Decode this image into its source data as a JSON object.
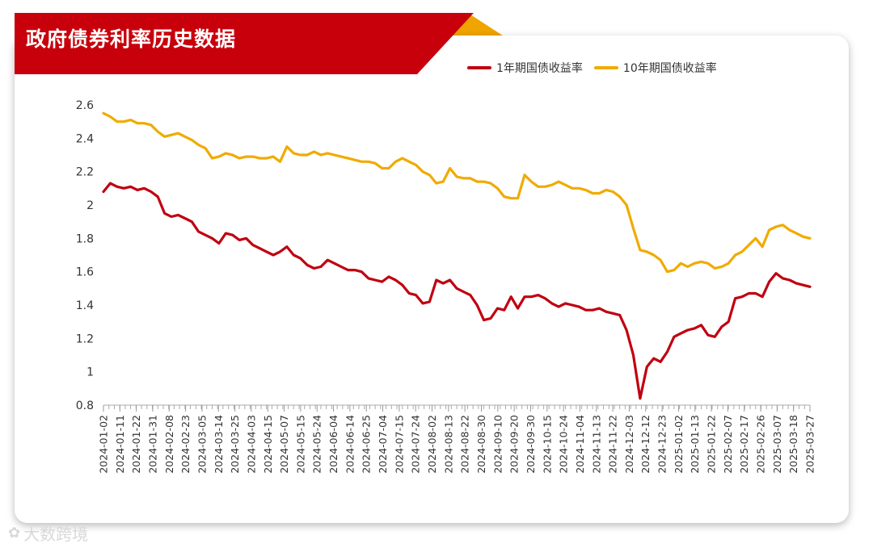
{
  "title": "政府债券利率历史数据",
  "watermark": "大数跨境",
  "watermark_icon": "logo-icon",
  "chart_data": {
    "type": "line",
    "title": "政府债券利率历史数据",
    "xlabel": "",
    "ylabel": "",
    "ylim": [
      0.8,
      2.6
    ],
    "yticks": [
      0.8,
      1,
      1.2,
      1.4,
      1.6,
      1.8,
      2,
      2.2,
      2.4,
      2.6
    ],
    "ytick_labels": [
      "0.8",
      "1",
      "1.2",
      "1.4",
      "1.6",
      "1.8",
      "2",
      "2.2",
      "2.4",
      "2.6"
    ],
    "x_tick_labels": [
      "2024-01-02",
      "2024-01-11",
      "2024-01-22",
      "2024-01-31",
      "2024-02-08",
      "2024-02-23",
      "2024-03-05",
      "2024-03-14",
      "2024-03-25",
      "2024-04-03",
      "2024-04-15",
      "2024-05-07",
      "2024-05-15",
      "2024-05-24",
      "2024-06-04",
      "2024-06-14",
      "2024-06-25",
      "2024-07-04",
      "2024-07-15",
      "2024-07-24",
      "2024-08-02",
      "2024-08-13",
      "2024-08-22",
      "2024-08-30",
      "2024-09-10",
      "2024-09-20",
      "2024-09-30",
      "2024-10-15",
      "2024-10-24",
      "2024-11-04",
      "2024-11-13",
      "2024-11-22",
      "2024-12-03",
      "2024-12-12",
      "2024-12-23",
      "2025-01-02",
      "2025-01-13",
      "2025-01-22",
      "2025-02-07",
      "2025-02-17",
      "2025-02-26",
      "2025-03-07",
      "2025-03-18",
      "2025-03-27"
    ],
    "grid": false,
    "legend_position": "top-right",
    "series": [
      {
        "name": "1年期国债收益率",
        "color": "#c00010",
        "values": [
          2.08,
          2.13,
          2.11,
          2.1,
          2.11,
          2.09,
          2.1,
          2.08,
          2.05,
          1.95,
          1.93,
          1.94,
          1.92,
          1.9,
          1.84,
          1.82,
          1.8,
          1.77,
          1.83,
          1.82,
          1.79,
          1.8,
          1.76,
          1.74,
          1.72,
          1.7,
          1.72,
          1.75,
          1.7,
          1.68,
          1.64,
          1.62,
          1.63,
          1.67,
          1.65,
          1.63,
          1.61,
          1.61,
          1.6,
          1.56,
          1.55,
          1.54,
          1.57,
          1.55,
          1.52,
          1.47,
          1.46,
          1.41,
          1.42,
          1.55,
          1.53,
          1.55,
          1.5,
          1.48,
          1.46,
          1.4,
          1.31,
          1.32,
          1.38,
          1.37,
          1.45,
          1.38,
          1.45,
          1.45,
          1.46,
          1.44,
          1.41,
          1.39,
          1.41,
          1.4,
          1.39,
          1.37,
          1.37,
          1.38,
          1.36,
          1.35,
          1.34,
          1.25,
          1.1,
          0.84,
          1.03,
          1.08,
          1.06,
          1.12,
          1.21,
          1.23,
          1.25,
          1.26,
          1.28,
          1.22,
          1.21,
          1.27,
          1.3,
          1.44,
          1.45,
          1.47,
          1.47,
          1.45,
          1.54,
          1.59,
          1.56,
          1.55,
          1.53,
          1.52,
          1.51
        ]
      },
      {
        "name": "10年期国债收益率",
        "color": "#f0ab00",
        "values": [
          2.55,
          2.53,
          2.5,
          2.5,
          2.51,
          2.49,
          2.49,
          2.48,
          2.44,
          2.41,
          2.42,
          2.43,
          2.41,
          2.39,
          2.36,
          2.34,
          2.28,
          2.29,
          2.31,
          2.3,
          2.28,
          2.29,
          2.29,
          2.28,
          2.28,
          2.29,
          2.26,
          2.35,
          2.31,
          2.3,
          2.3,
          2.32,
          2.3,
          2.31,
          2.3,
          2.29,
          2.28,
          2.27,
          2.26,
          2.26,
          2.25,
          2.22,
          2.22,
          2.26,
          2.28,
          2.26,
          2.24,
          2.2,
          2.18,
          2.13,
          2.14,
          2.22,
          2.17,
          2.16,
          2.16,
          2.14,
          2.14,
          2.13,
          2.1,
          2.05,
          2.04,
          2.04,
          2.18,
          2.14,
          2.11,
          2.11,
          2.12,
          2.14,
          2.12,
          2.1,
          2.1,
          2.09,
          2.07,
          2.07,
          2.09,
          2.08,
          2.05,
          2.0,
          1.86,
          1.73,
          1.72,
          1.7,
          1.67,
          1.6,
          1.61,
          1.65,
          1.63,
          1.65,
          1.66,
          1.65,
          1.62,
          1.63,
          1.65,
          1.7,
          1.72,
          1.76,
          1.8,
          1.75,
          1.85,
          1.87,
          1.88,
          1.85,
          1.83,
          1.81,
          1.8
        ]
      }
    ]
  }
}
